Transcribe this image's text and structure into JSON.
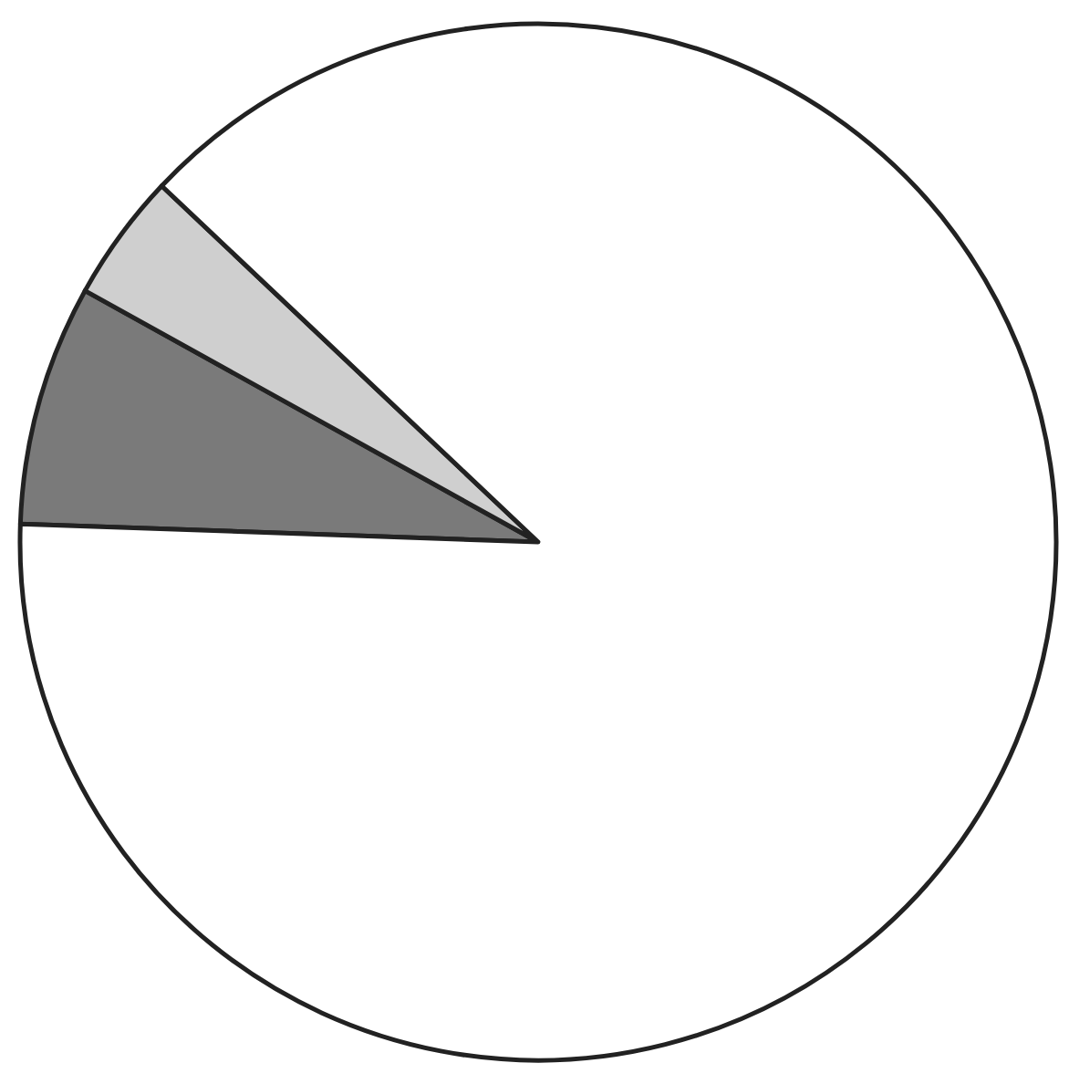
{
  "chart_data": {
    "type": "pie",
    "categories": [
      null,
      null,
      null
    ],
    "values": [
      7.5,
      4,
      88.5
    ],
    "colors": [
      "#7a7a7a",
      "#cfcfcf",
      "#ffffff"
    ]
  }
}
